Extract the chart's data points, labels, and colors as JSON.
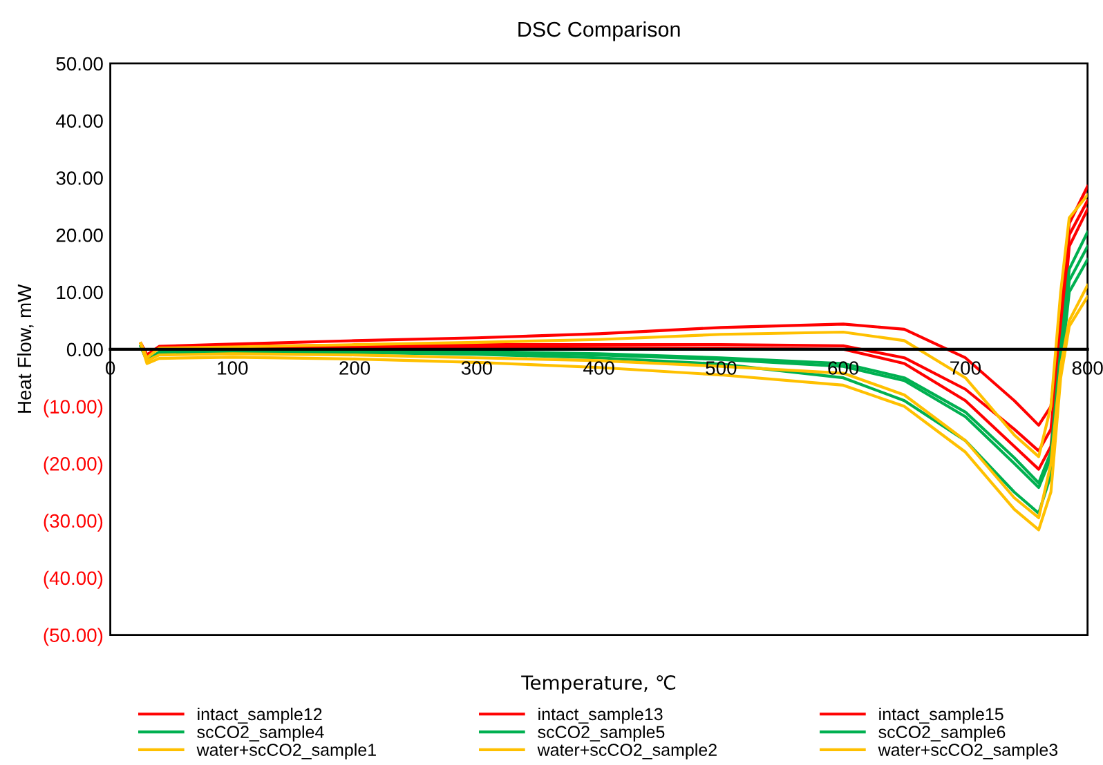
{
  "chart_data": {
    "type": "line",
    "title": "DSC Comparison",
    "xlabel": "Temperature, ℃",
    "ylabel": "Heat Flow, mW",
    "xlim": [
      0,
      800
    ],
    "xticks": [
      0,
      100,
      200,
      300,
      400,
      500,
      600,
      700,
      800
    ],
    "ylim": [
      -50,
      50
    ],
    "yticks": [
      {
        "value": 50,
        "label": "50.00"
      },
      {
        "value": 40,
        "label": "40.00"
      },
      {
        "value": 30,
        "label": "30.00"
      },
      {
        "value": 20,
        "label": "20.00"
      },
      {
        "value": 10,
        "label": "10.00"
      },
      {
        "value": 0,
        "label": "0.00"
      },
      {
        "value": -10,
        "label": "(10.00)"
      },
      {
        "value": -20,
        "label": "(20.00)"
      },
      {
        "value": -30,
        "label": "(30.00)"
      },
      {
        "value": -40,
        "label": "(40.00)"
      },
      {
        "value": -50,
        "label": "(50.00)"
      }
    ],
    "x": [
      25,
      30,
      40,
      100,
      200,
      300,
      400,
      500,
      600,
      650,
      700,
      740,
      760,
      770,
      778,
      785,
      800
    ],
    "grid": false,
    "legend": "bottom",
    "marker": "none",
    "line_style": "solid",
    "series": [
      {
        "name": "intact_sample12",
        "color": "#ff0000",
        "values": [
          1,
          -1,
          0.5,
          0.9,
          1.5,
          2.0,
          2.7,
          3.8,
          4.4,
          3.5,
          -1.5,
          -9,
          -13.3,
          -10,
          5,
          22,
          28.5
        ]
      },
      {
        "name": "intact_sample13",
        "color": "#ff0000",
        "values": [
          1,
          -1,
          0.3,
          0.5,
          0.7,
          0.8,
          0.8,
          0.8,
          0.6,
          -1.5,
          -7,
          -14,
          -17.8,
          -14,
          3,
          20,
          26
        ]
      },
      {
        "name": "intact_sample15",
        "color": "#ff0000",
        "values": [
          1,
          -1,
          0.2,
          0.3,
          0.4,
          0.4,
          0.3,
          0.2,
          0.0,
          -2.5,
          -9,
          -17,
          -21,
          -17,
          0,
          18,
          24.5
        ]
      },
      {
        "name": "scCO2_sample4",
        "color": "#00b050",
        "values": [
          0.5,
          -2,
          -0.5,
          -0.2,
          -0.2,
          -0.4,
          -0.8,
          -1.5,
          -2.5,
          -5,
          -11,
          -19,
          -23.4,
          -18,
          0,
          14,
          20.5
        ]
      },
      {
        "name": "scCO2_sample5",
        "color": "#00b050",
        "values": [
          0.5,
          -2,
          -0.6,
          -0.3,
          -0.4,
          -0.6,
          -1.0,
          -1.8,
          -3.0,
          -5.5,
          -11.8,
          -20,
          -24.2,
          -19,
          -2,
          12,
          18
        ]
      },
      {
        "name": "scCO2_sample6",
        "color": "#00b050",
        "values": [
          0.5,
          -2,
          -0.8,
          -0.5,
          -0.6,
          -0.9,
          -1.5,
          -2.6,
          -5,
          -9,
          -16,
          -25,
          -28.7,
          -22,
          -4,
          10,
          15.7
        ]
      },
      {
        "name": "water+scCO2_sample1",
        "color": "#ffc000",
        "values": [
          1,
          -1.5,
          0.2,
          0.4,
          0.8,
          1.2,
          1.7,
          2.6,
          3.0,
          1.5,
          -5,
          -15,
          -18.8,
          -10,
          10,
          23,
          27
        ]
      },
      {
        "name": "water+scCO2_sample2",
        "color": "#ffc000",
        "values": [
          1,
          -2,
          -1,
          -0.8,
          -1,
          -1.5,
          -2,
          -3,
          -4.2,
          -8,
          -16,
          -26,
          -29.5,
          -20,
          -3,
          5,
          11.2
        ]
      },
      {
        "name": "water+scCO2_sample3",
        "color": "#ffc000",
        "values": [
          1,
          -2.5,
          -1.6,
          -1.4,
          -1.7,
          -2.3,
          -3.2,
          -4.5,
          -6.3,
          -10,
          -18,
          -28,
          -31.6,
          -25,
          -5,
          4,
          9.2
        ]
      }
    ]
  }
}
